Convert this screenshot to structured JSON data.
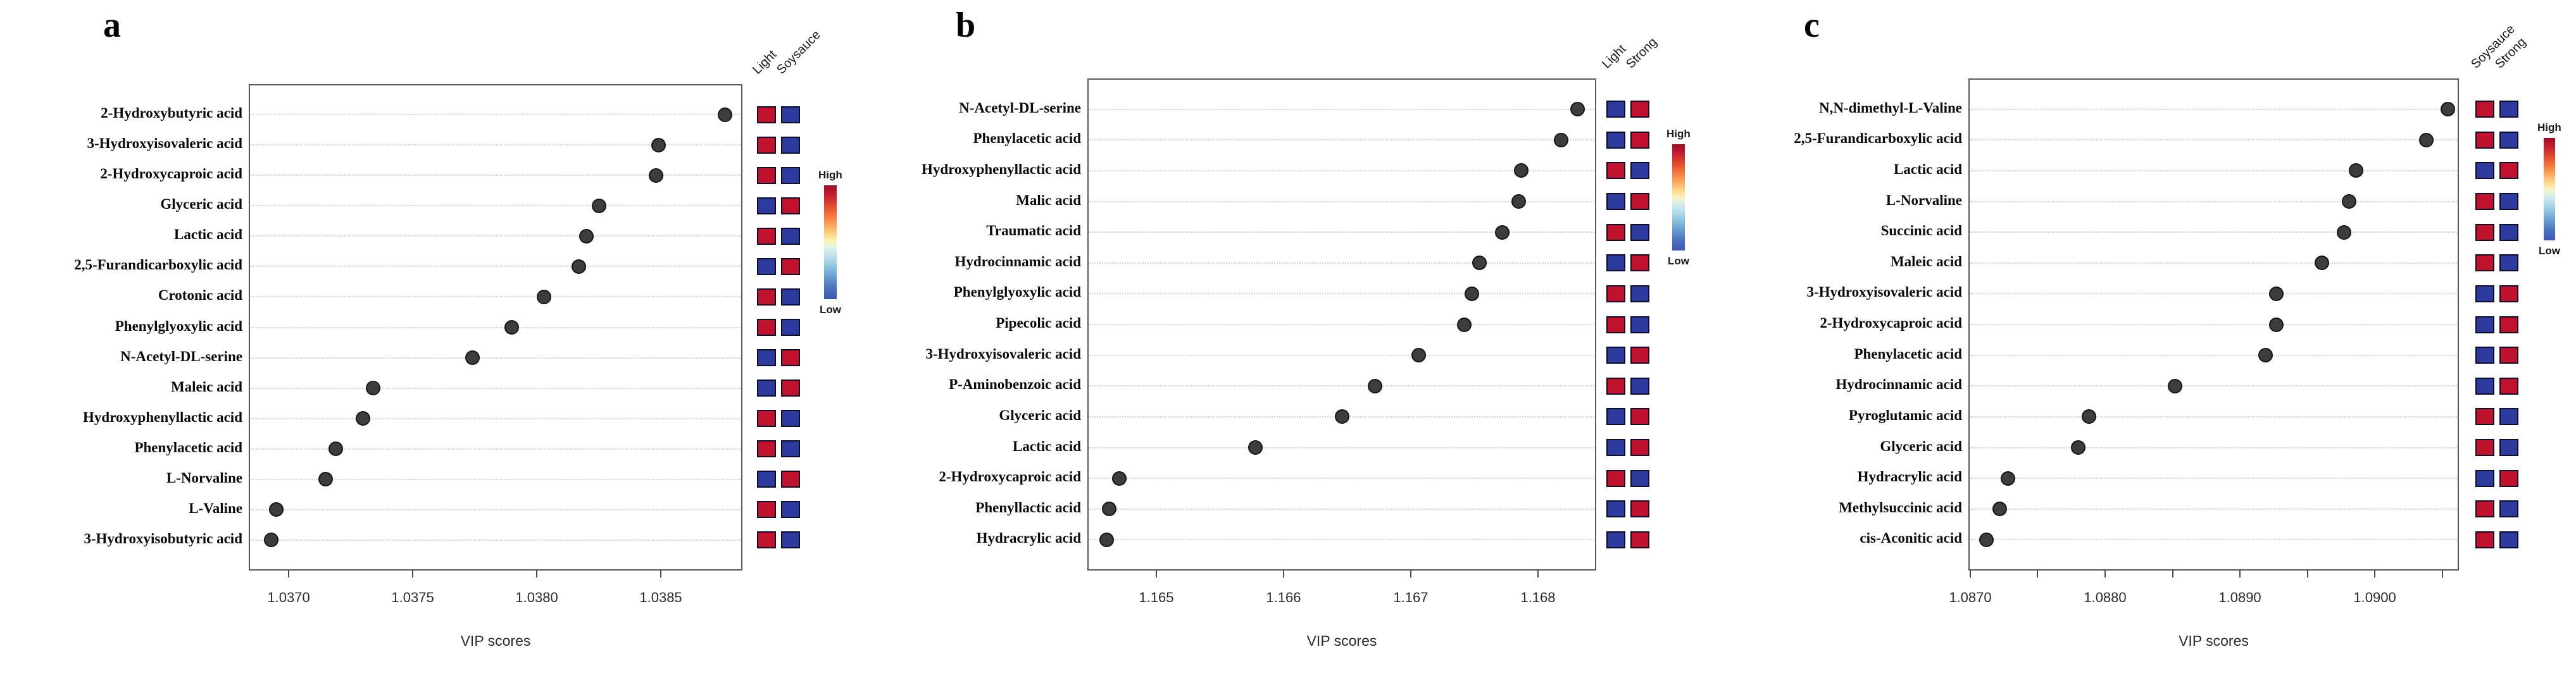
{
  "figure_type": "VIP score plots with relative-abundance heatmaps",
  "colors": {
    "high": "#c0122c",
    "low": "#2d3a9e",
    "dot": "#3d3d3d",
    "plot_border": "#595959"
  },
  "colorbar": {
    "high_label": "High",
    "low_label": "Low"
  },
  "chart_data": [
    {
      "type": "scatter",
      "panel_letter": "a",
      "xlabel": "VIP scores",
      "xlim": [
        1.036839,
        1.038829
      ],
      "grid": "dotted-horizontal",
      "xticks": [
        {
          "value": 1.037,
          "label": "1.0370"
        },
        {
          "value": 1.0375,
          "label": "1.0375"
        },
        {
          "value": 1.038,
          "label": "1.0380"
        },
        {
          "value": 1.0385,
          "label": "1.0385"
        }
      ],
      "heat_columns": [
        "Light",
        "Soysauce"
      ],
      "rows": [
        {
          "label": "2-Hydroxybutyric acid",
          "vip": 1.03876,
          "heat": [
            "high",
            "low"
          ]
        },
        {
          "label": "3-Hydroxyisovaleric acid",
          "vip": 1.03849,
          "heat": [
            "high",
            "low"
          ]
        },
        {
          "label": "2-Hydroxycaproic acid",
          "vip": 1.03848,
          "heat": [
            "high",
            "low"
          ]
        },
        {
          "label": "Glyceric acid",
          "vip": 1.03825,
          "heat": [
            "low",
            "high"
          ]
        },
        {
          "label": "Lactic acid",
          "vip": 1.0382,
          "heat": [
            "high",
            "low"
          ]
        },
        {
          "label": "2,5-Furandicarboxylic acid",
          "vip": 1.03817,
          "heat": [
            "low",
            "high"
          ]
        },
        {
          "label": "Crotonic acid",
          "vip": 1.03803,
          "heat": [
            "high",
            "low"
          ]
        },
        {
          "label": "Phenylglyoxylic acid",
          "vip": 1.0379,
          "heat": [
            "high",
            "low"
          ]
        },
        {
          "label": "N-Acetyl-DL-serine",
          "vip": 1.03774,
          "heat": [
            "low",
            "high"
          ]
        },
        {
          "label": "Maleic acid",
          "vip": 1.03734,
          "heat": [
            "low",
            "high"
          ]
        },
        {
          "label": "Hydroxyphenyllactic acid",
          "vip": 1.0373,
          "heat": [
            "high",
            "low"
          ]
        },
        {
          "label": "Phenylacetic acid",
          "vip": 1.03719,
          "heat": [
            "high",
            "low"
          ]
        },
        {
          "label": "L-Norvaline",
          "vip": 1.03715,
          "heat": [
            "low",
            "high"
          ]
        },
        {
          "label": "L-Valine",
          "vip": 1.03695,
          "heat": [
            "high",
            "low"
          ]
        },
        {
          "label": "3-Hydroxyisobutyric acid",
          "vip": 1.03693,
          "heat": [
            "high",
            "low"
          ]
        }
      ]
    },
    {
      "type": "scatter",
      "panel_letter": "b",
      "xlabel": "VIP scores",
      "xlim": [
        1.164458,
        1.168458
      ],
      "grid": "dotted-horizontal",
      "xticks": [
        {
          "value": 1.165,
          "label": "1.165"
        },
        {
          "value": 1.166,
          "label": "1.166"
        },
        {
          "value": 1.167,
          "label": "1.167"
        },
        {
          "value": 1.168,
          "label": "1.168"
        }
      ],
      "heat_columns": [
        "Light",
        "Strong"
      ],
      "rows": [
        {
          "label": "N-Acetyl-DL-serine",
          "vip": 1.16831,
          "heat": [
            "low",
            "high"
          ]
        },
        {
          "label": "Phenylacetic acid",
          "vip": 1.16818,
          "heat": [
            "low",
            "high"
          ]
        },
        {
          "label": "Hydroxyphenyllactic acid",
          "vip": 1.16787,
          "heat": [
            "high",
            "low"
          ]
        },
        {
          "label": "Malic acid",
          "vip": 1.16785,
          "heat": [
            "low",
            "high"
          ]
        },
        {
          "label": "Traumatic acid",
          "vip": 1.16772,
          "heat": [
            "high",
            "low"
          ]
        },
        {
          "label": "Hydrocinnamic acid",
          "vip": 1.16754,
          "heat": [
            "low",
            "high"
          ]
        },
        {
          "label": "Phenylglyoxylic acid",
          "vip": 1.16748,
          "heat": [
            "high",
            "low"
          ]
        },
        {
          "label": "Pipecolic acid",
          "vip": 1.16742,
          "heat": [
            "high",
            "low"
          ]
        },
        {
          "label": "3-Hydroxyisovaleric acid",
          "vip": 1.16706,
          "heat": [
            "low",
            "high"
          ]
        },
        {
          "label": "P-Aminobenzoic acid",
          "vip": 1.16672,
          "heat": [
            "high",
            "low"
          ]
        },
        {
          "label": "Glyceric acid",
          "vip": 1.16646,
          "heat": [
            "low",
            "high"
          ]
        },
        {
          "label": "Lactic acid",
          "vip": 1.16578,
          "heat": [
            "low",
            "high"
          ]
        },
        {
          "label": "2-Hydroxycaproic acid",
          "vip": 1.16471,
          "heat": [
            "high",
            "low"
          ]
        },
        {
          "label": "Phenyllactic acid",
          "vip": 1.16463,
          "heat": [
            "low",
            "high"
          ]
        },
        {
          "label": "Hydracrylic acid",
          "vip": 1.16461,
          "heat": [
            "low",
            "high"
          ]
        }
      ]
    },
    {
      "type": "scatter",
      "panel_letter": "c",
      "xlabel": "VIP scores",
      "xlim": [
        1.086986,
        1.090624
      ],
      "grid": "dotted-horizontal",
      "xticks": [
        {
          "value": 1.087,
          "label": "1.0870"
        },
        {
          "value": 1.0875,
          "label": ""
        },
        {
          "value": 1.088,
          "label": "1.0880"
        },
        {
          "value": 1.0885,
          "label": ""
        },
        {
          "value": 1.089,
          "label": "1.0890"
        },
        {
          "value": 1.0895,
          "label": ""
        },
        {
          "value": 1.09,
          "label": "1.0900"
        },
        {
          "value": 1.0905,
          "label": ""
        }
      ],
      "heat_columns": [
        "Soysauce",
        "Strong"
      ],
      "rows": [
        {
          "label": "N,N-dimethyl-L-Valine",
          "vip": 1.09054,
          "heat": [
            "high",
            "low"
          ]
        },
        {
          "label": "2,5-Furandicarboxylic acid",
          "vip": 1.09038,
          "heat": [
            "high",
            "low"
          ]
        },
        {
          "label": "Lactic acid",
          "vip": 1.08986,
          "heat": [
            "low",
            "high"
          ]
        },
        {
          "label": "L-Norvaline",
          "vip": 1.08981,
          "heat": [
            "high",
            "low"
          ]
        },
        {
          "label": "Succinic acid",
          "vip": 1.08977,
          "heat": [
            "high",
            "low"
          ]
        },
        {
          "label": "Maleic acid",
          "vip": 1.08961,
          "heat": [
            "high",
            "low"
          ]
        },
        {
          "label": "3-Hydroxyisovaleric acid",
          "vip": 1.08927,
          "heat": [
            "low",
            "high"
          ]
        },
        {
          "label": "2-Hydroxycaproic acid",
          "vip": 1.08927,
          "heat": [
            "low",
            "high"
          ]
        },
        {
          "label": "Phenylacetic acid",
          "vip": 1.08919,
          "heat": [
            "low",
            "high"
          ]
        },
        {
          "label": "Hydrocinnamic acid",
          "vip": 1.08852,
          "heat": [
            "low",
            "high"
          ]
        },
        {
          "label": "Pyroglutamic acid",
          "vip": 1.08788,
          "heat": [
            "high",
            "low"
          ]
        },
        {
          "label": "Glyceric acid",
          "vip": 1.0878,
          "heat": [
            "high",
            "low"
          ]
        },
        {
          "label": "Hydracrylic acid",
          "vip": 1.08728,
          "heat": [
            "low",
            "high"
          ]
        },
        {
          "label": "Methylsuccinic acid",
          "vip": 1.08722,
          "heat": [
            "high",
            "low"
          ]
        },
        {
          "label": "cis-Aconitic acid",
          "vip": 1.08712,
          "heat": [
            "high",
            "low"
          ]
        }
      ]
    }
  ]
}
